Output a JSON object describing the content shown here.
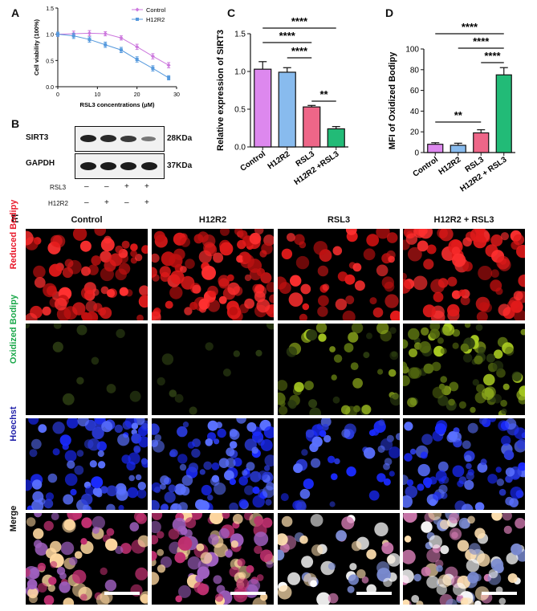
{
  "panels": {
    "a": "A",
    "b": "B",
    "c": "C",
    "d": "D",
    "e": "E"
  },
  "chart_data": [
    {
      "id": "A",
      "type": "line",
      "xlabel": "RSL3 concentrations (μM)",
      "ylabel": "Cell viability (100%)",
      "xlim": [
        0,
        30
      ],
      "ylim": [
        0,
        1.5
      ],
      "xticks": [
        0,
        10,
        20,
        30
      ],
      "yticks": [
        0.0,
        0.5,
        1.0,
        1.5
      ],
      "legend_position": "top-right",
      "x": [
        0,
        4,
        8,
        12,
        16,
        20,
        24,
        28
      ],
      "series": [
        {
          "name": "Control",
          "color": "#cc77dd",
          "values": [
            1.0,
            1.01,
            1.02,
            1.01,
            0.93,
            0.76,
            0.58,
            0.41
          ],
          "err": [
            0.04,
            0.05,
            0.05,
            0.04,
            0.04,
            0.05,
            0.05,
            0.05
          ]
        },
        {
          "name": "H12R2",
          "color": "#5599dd",
          "values": [
            1.0,
            0.97,
            0.9,
            0.8,
            0.7,
            0.52,
            0.35,
            0.17
          ],
          "err": [
            0.04,
            0.05,
            0.05,
            0.05,
            0.05,
            0.05,
            0.05,
            0.04
          ]
        }
      ]
    },
    {
      "id": "C",
      "type": "bar",
      "ylabel": "Relative expression of SIRT3",
      "ylim": [
        0,
        1.5
      ],
      "yticks": [
        "0.0",
        "0.5",
        "1.0",
        "1.5"
      ],
      "categories": [
        "Control",
        "H12R2",
        "RSL3",
        "H12R2 +RSL3"
      ],
      "values": [
        1.03,
        0.99,
        0.53,
        0.24
      ],
      "err": [
        0.1,
        0.06,
        0.02,
        0.03
      ],
      "colors": [
        "#dd88ee",
        "#88bbee",
        "#ee6688",
        "#22bb77"
      ],
      "significance": [
        {
          "from": 0,
          "to": 3,
          "label": "****"
        },
        {
          "from": 0,
          "to": 2,
          "label": "****"
        },
        {
          "from": 1,
          "to": 2,
          "label": "****"
        },
        {
          "from": 2,
          "to": 3,
          "label": "**"
        }
      ]
    },
    {
      "id": "D",
      "type": "bar",
      "ylabel": "MFI of Oxidized Bodipy",
      "ylim": [
        0,
        100
      ],
      "yticks": [
        "0",
        "20",
        "40",
        "60",
        "80",
        "100"
      ],
      "categories": [
        "Control",
        "H12R2",
        "RSL3",
        "H12R2 + RSL3"
      ],
      "values": [
        8,
        7,
        19,
        75
      ],
      "err": [
        1.5,
        2,
        3,
        7
      ],
      "colors": [
        "#dd88ee",
        "#88bbee",
        "#ee6688",
        "#22bb77"
      ],
      "significance": [
        {
          "from": 0,
          "to": 3,
          "label": "****"
        },
        {
          "from": 1,
          "to": 3,
          "label": "****"
        },
        {
          "from": 2,
          "to": 3,
          "label": "****"
        },
        {
          "from": 0,
          "to": 2,
          "label": "**"
        }
      ]
    }
  ],
  "western": {
    "rows": [
      {
        "name": "SIRT3",
        "size": "28KDa"
      },
      {
        "name": "GAPDH",
        "size": "37KDa"
      }
    ],
    "treatments": [
      {
        "name": "RSL3",
        "signs": [
          "–",
          "–",
          "+",
          "+"
        ]
      },
      {
        "name": "H12R2",
        "signs": [
          "–",
          "+",
          "–",
          "+"
        ]
      }
    ]
  },
  "microscopy": {
    "columns": [
      "Control",
      "H12R2",
      "RSL3",
      "H12R2 + RSL3"
    ],
    "rows": [
      {
        "label": "Reduced Bodipy",
        "color": "#e8182a"
      },
      {
        "label": "Oxidized Bodipy",
        "color": "#1aa84a"
      },
      {
        "label": "Hoechst",
        "color": "#2222aa"
      },
      {
        "label": "Merge",
        "color": "#111111"
      }
    ]
  }
}
